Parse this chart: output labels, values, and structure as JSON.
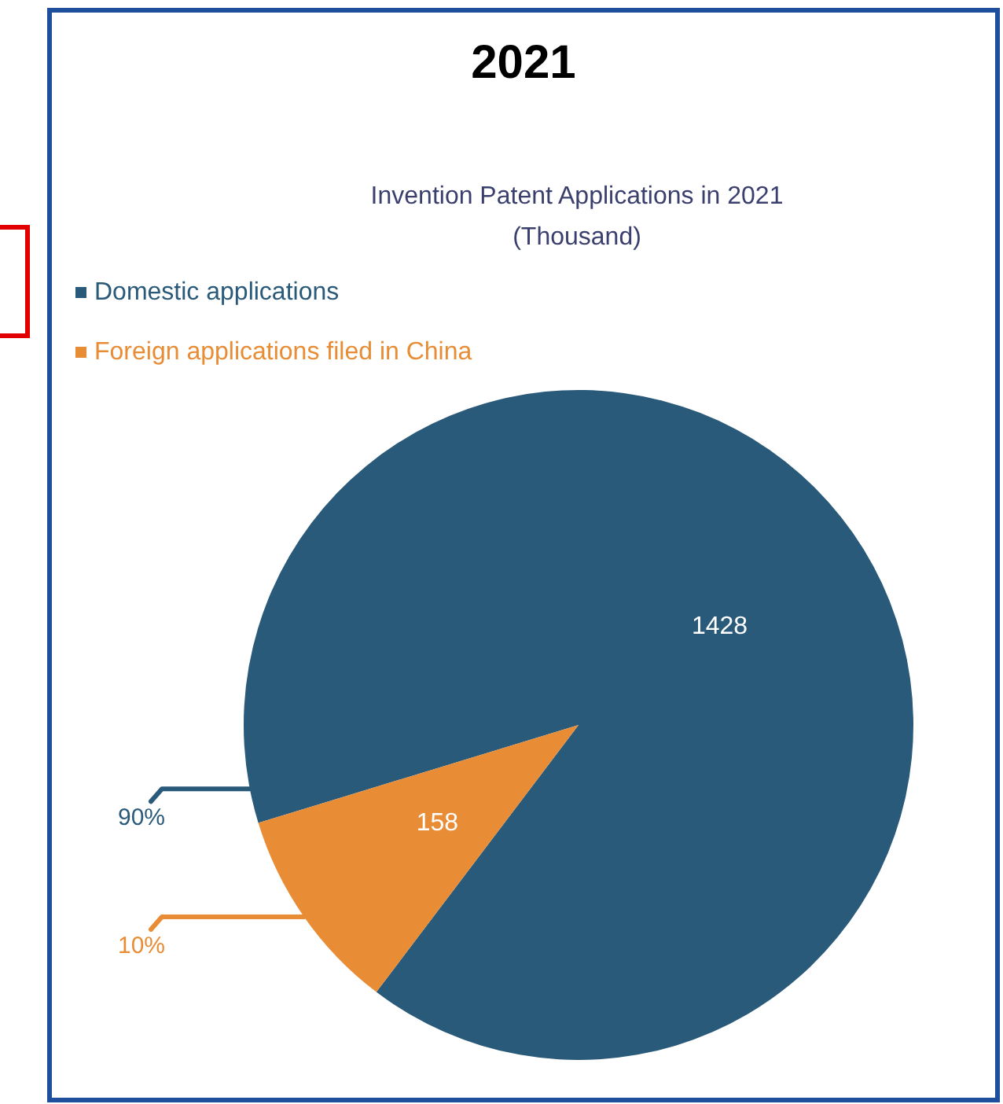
{
  "chart_data": {
    "type": "pie",
    "title": "2021",
    "subtitle": "Invention Patent Applications in 2021\n(Thousand)",
    "categories": [
      "Domestic applications",
      "Foreign applications filed in China"
    ],
    "values": [
      1428,
      158
    ],
    "colors": [
      "#2a5a7a",
      "#e88d35"
    ],
    "value_labels": [
      "1428",
      "158"
    ],
    "annotations": [
      "90%",
      "10%"
    ],
    "legend": "top left"
  }
}
